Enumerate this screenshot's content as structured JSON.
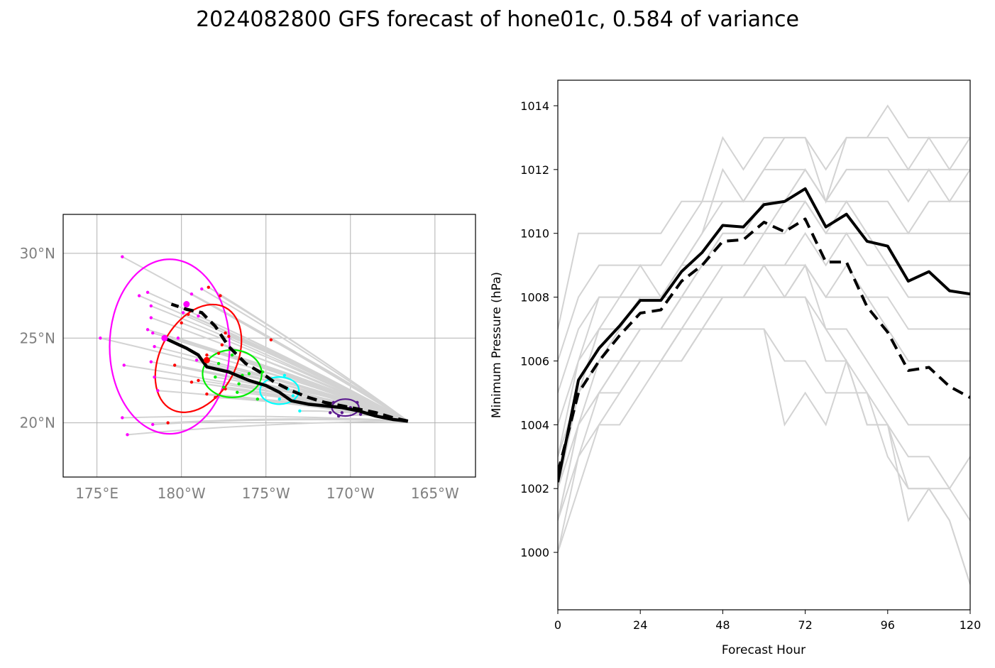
{
  "title": "2024082800 GFS forecast of hone01c, 0.584 of variance",
  "chart_data": [
    {
      "type": "map",
      "lon_ticks": [
        175,
        180,
        185,
        190,
        195
      ],
      "lon_tick_labels": [
        "175°E",
        "180°W",
        "175°W",
        "170°W",
        "165°W"
      ],
      "lat_ticks": [
        20,
        25,
        30
      ],
      "lat_tick_labels": [
        "20°N",
        "25°N",
        "30°N"
      ],
      "lon_range": [
        173,
        197.4
      ],
      "lat_range": [
        16.8,
        32.3
      ],
      "grid": true,
      "mean_track": {
        "solid": [
          [
            193.4,
            20.1
          ],
          [
            192.5,
            20.2
          ],
          [
            191.5,
            20.4
          ],
          [
            190.5,
            20.7
          ],
          [
            189.5,
            20.9
          ],
          [
            188.5,
            21.0
          ],
          [
            187.5,
            21.1
          ],
          [
            186.5,
            21.3
          ],
          [
            185.8,
            21.8
          ],
          [
            185.0,
            22.2
          ],
          [
            184.0,
            22.5
          ],
          [
            182.8,
            23.0
          ],
          [
            181.5,
            23.3
          ],
          [
            181.0,
            24.0
          ],
          [
            180.3,
            24.4
          ],
          [
            179.0,
            25.0
          ]
        ],
        "dashed": [
          [
            193.4,
            20.1
          ],
          [
            192.5,
            20.3
          ],
          [
            191.5,
            20.6
          ],
          [
            190.5,
            20.8
          ],
          [
            189.5,
            21.0
          ],
          [
            188.5,
            21.2
          ],
          [
            187.5,
            21.5
          ],
          [
            186.5,
            21.9
          ],
          [
            185.5,
            22.4
          ],
          [
            184.8,
            22.9
          ],
          [
            183.8,
            23.5
          ],
          [
            182.8,
            24.5
          ],
          [
            182.0,
            25.7
          ],
          [
            181.2,
            26.5
          ],
          [
            180.3,
            26.7
          ],
          [
            179.4,
            27.0
          ]
        ]
      },
      "error_ellipses": [
        {
          "color": "#ff00ff",
          "center": [
            179.3,
            24.5
          ],
          "width_deg": 7.1,
          "height_deg": 10.3,
          "angle_deg": 0
        },
        {
          "color": "#ff0000",
          "center": [
            181.0,
            23.8
          ],
          "width_deg": 4.5,
          "height_deg": 6.8,
          "angle_deg": 28
        },
        {
          "color": "#00ee00",
          "center": [
            183.0,
            22.9
          ],
          "width_deg": 3.5,
          "height_deg": 2.8,
          "angle_deg": 0
        },
        {
          "color": "#00ffff",
          "center": [
            185.8,
            21.9
          ],
          "width_deg": 2.3,
          "height_deg": 1.6,
          "angle_deg": 0
        },
        {
          "color": "#5b1a8f",
          "center": [
            189.7,
            20.9
          ],
          "width_deg": 1.6,
          "height_deg": 1.0,
          "angle_deg": 0
        }
      ],
      "member_points": [
        {
          "color": "#ff00ff",
          "points": [
            [
              176.5,
              29.8
            ],
            [
              177.5,
              27.5
            ],
            [
              178.0,
              27.7
            ],
            [
              178.2,
              26.9
            ],
            [
              178.2,
              26.2
            ],
            [
              178.0,
              25.5
            ],
            [
              178.3,
              25.3
            ],
            [
              178.4,
              24.5
            ],
            [
              178.2,
              23.6
            ],
            [
              178.4,
              22.7
            ],
            [
              178.6,
              21.9
            ],
            [
              175.2,
              25.0
            ],
            [
              176.6,
              23.4
            ],
            [
              176.5,
              20.3
            ],
            [
              176.8,
              19.3
            ],
            [
              178.3,
              19.9
            ],
            [
              180.1,
              26.5
            ],
            [
              179.8,
              25.0
            ],
            [
              180.6,
              27.6
            ],
            [
              181.2,
              27.9
            ],
            [
              181.0,
              26.3
            ],
            [
              180.9,
              23.7
            ]
          ]
        },
        {
          "color": "#ff0000",
          "points": [
            [
              181.6,
              28.0
            ],
            [
              182.3,
              27.5
            ],
            [
              182.6,
              25.3
            ],
            [
              182.4,
              24.6
            ],
            [
              182.2,
              24.1
            ],
            [
              181.9,
              23.2
            ],
            [
              181.0,
              22.5
            ],
            [
              180.6,
              22.4
            ],
            [
              181.5,
              21.7
            ],
            [
              182.0,
              21.5
            ],
            [
              182.6,
              22.0
            ],
            [
              180.4,
              26.4
            ],
            [
              180.0,
              25.9
            ],
            [
              179.6,
              23.4
            ],
            [
              179.2,
              20.0
            ],
            [
              185.3,
              24.9
            ],
            [
              182.8,
              25.1
            ],
            [
              181.5,
              24.0
            ]
          ]
        },
        {
          "color": "#00ee00",
          "points": [
            [
              183.0,
              24.0
            ],
            [
              183.6,
              22.8
            ],
            [
              183.4,
              22.3
            ],
            [
              182.5,
              22.1
            ],
            [
              182.0,
              22.7
            ],
            [
              184.0,
              22.9
            ],
            [
              184.5,
              21.4
            ],
            [
              183.3,
              21.8
            ],
            [
              184.8,
              23.0
            ],
            [
              182.2,
              23.5
            ]
          ]
        },
        {
          "color": "#00ffff",
          "points": [
            [
              185.2,
              22.6
            ],
            [
              186.1,
              22.8
            ],
            [
              186.3,
              22.0
            ],
            [
              185.8,
              21.4
            ],
            [
              187.0,
              20.7
            ],
            [
              185.4,
              22.0
            ],
            [
              186.6,
              21.6
            ]
          ]
        },
        {
          "color": "#5b1a8f",
          "points": [
            [
              189.0,
              21.2
            ],
            [
              189.5,
              20.6
            ],
            [
              190.0,
              20.9
            ],
            [
              190.4,
              21.2
            ],
            [
              189.3,
              20.4
            ],
            [
              188.8,
              20.6
            ],
            [
              190.6,
              20.5
            ]
          ]
        }
      ],
      "start_markers": [
        [
          180.3,
          27.0
        ],
        [
          179.0,
          25.0
        ],
        [
          181.5,
          23.7
        ]
      ]
    },
    {
      "type": "line",
      "xlabel": "Forecast Hour",
      "ylabel": "Minimum Pressure (hPa)",
      "xlim": [
        0,
        120
      ],
      "ylim": [
        998.2,
        1014.8
      ],
      "xticks": [
        0,
        24,
        48,
        72,
        96,
        120
      ],
      "yticks": [
        1000,
        1002,
        1004,
        1006,
        1008,
        1010,
        1012,
        1014
      ],
      "x": [
        0,
        6,
        12,
        18,
        24,
        30,
        36,
        42,
        48,
        54,
        60,
        66,
        72,
        78,
        84,
        90,
        96,
        102,
        108,
        114,
        120
      ],
      "series": [
        {
          "style": "mean-solid",
          "values": [
            1002.2,
            1005.4,
            1006.4,
            1007.1,
            1007.9,
            1007.9,
            1008.8,
            1009.4,
            1010.25,
            1010.2,
            1010.9,
            1011.0,
            1011.4,
            1010.2,
            1010.6,
            1009.75,
            1009.6,
            1008.5,
            1008.8,
            1008.2,
            1008.1
          ]
        },
        {
          "style": "mean-dashed",
          "values": [
            1002.5,
            1005.0,
            1006.0,
            1006.8,
            1007.5,
            1007.6,
            1008.5,
            1009.0,
            1009.75,
            1009.8,
            1010.35,
            1010.05,
            1010.45,
            1009.1,
            1009.1,
            1007.7,
            1006.9,
            1005.7,
            1005.8,
            1005.2,
            1004.85
          ]
        },
        {
          "style": "member",
          "values": [
            1007,
            1010,
            1010,
            1010,
            1010,
            1010,
            1011,
            1011,
            1011,
            1011,
            1011,
            1011,
            1012,
            1011,
            1012,
            1012,
            1012,
            1012,
            1012,
            1012,
            1012
          ]
        },
        {
          "style": "member",
          "values": [
            1006,
            1008,
            1009,
            1009,
            1009,
            1009,
            1010,
            1011,
            1013,
            1012,
            1013,
            1013,
            1013,
            1012,
            1013,
            1013,
            1014,
            1013,
            1013,
            1013,
            1013
          ]
        },
        {
          "style": "member",
          "values": [
            1005,
            1007,
            1008,
            1008,
            1009,
            1008,
            1009,
            1010,
            1012,
            1011,
            1012,
            1013,
            1013,
            1011,
            1013,
            1013,
            1013,
            1012,
            1013,
            1012,
            1013
          ]
        },
        {
          "style": "member",
          "values": [
            1004,
            1006,
            1008,
            1008,
            1008,
            1008,
            1009,
            1010,
            1011,
            1011,
            1012,
            1012,
            1012,
            1011,
            1012,
            1012,
            1012,
            1011,
            1012,
            1011,
            1012
          ]
        },
        {
          "style": "member",
          "values": [
            1003,
            1006,
            1007,
            1008,
            1008,
            1008,
            1009,
            1009,
            1010,
            1010,
            1011,
            1011,
            1012,
            1011,
            1011,
            1011,
            1011,
            1010,
            1011,
            1011,
            1011
          ]
        },
        {
          "style": "member",
          "values": [
            1003,
            1005,
            1007,
            1007,
            1008,
            1008,
            1008,
            1009,
            1010,
            1010,
            1010,
            1011,
            1011,
            1010,
            1011,
            1010,
            1010,
            1010,
            1010,
            1010,
            1010
          ]
        },
        {
          "style": "member",
          "values": [
            1002,
            1005,
            1007,
            1007,
            1007,
            1007,
            1008,
            1009,
            1009,
            1009,
            1010,
            1010,
            1011,
            1010,
            1010,
            1010,
            1009,
            1009,
            1009,
            1009,
            1009
          ]
        },
        {
          "style": "member",
          "values": [
            1002,
            1005,
            1006,
            1007,
            1007,
            1007,
            1008,
            1008,
            1009,
            1009,
            1009,
            1009,
            1010,
            1009,
            1010,
            1009,
            1009,
            1008,
            1008,
            1008,
            1008
          ]
        },
        {
          "style": "member",
          "values": [
            1002,
            1005,
            1006,
            1006,
            1007,
            1007,
            1008,
            1008,
            1008,
            1008,
            1009,
            1009,
            1009,
            1008,
            1009,
            1008,
            1008,
            1007,
            1007,
            1007,
            1007
          ]
        },
        {
          "style": "member",
          "values": [
            1002,
            1004,
            1006,
            1006,
            1007,
            1007,
            1007,
            1008,
            1008,
            1008,
            1009,
            1008,
            1009,
            1008,
            1008,
            1008,
            1007,
            1006,
            1006,
            1006,
            1006
          ]
        },
        {
          "style": "member",
          "values": [
            1001,
            1004,
            1005,
            1006,
            1006,
            1006,
            1007,
            1008,
            1008,
            1008,
            1008,
            1008,
            1009,
            1007,
            1007,
            1006,
            1005,
            1004,
            1004,
            1004,
            1004
          ]
        },
        {
          "style": "member",
          "values": [
            1001,
            1004,
            1005,
            1006,
            1006,
            1006,
            1007,
            1007,
            1008,
            1008,
            1008,
            1008,
            1008,
            1007,
            1006,
            1005,
            1004,
            1003,
            1003,
            1002,
            1003
          ]
        },
        {
          "style": "member",
          "values": [
            1001,
            1003,
            1005,
            1005,
            1006,
            1006,
            1007,
            1007,
            1008,
            1008,
            1008,
            1008,
            1008,
            1006,
            1006,
            1004,
            1004,
            1002,
            1002,
            1002,
            1001
          ]
        },
        {
          "style": "member",
          "values": [
            1000,
            1003,
            1004,
            1005,
            1006,
            1006,
            1006,
            1007,
            1007,
            1007,
            1007,
            1004,
            1005,
            1004,
            1006,
            1004,
            1004,
            1001,
            1002,
            1001,
            999
          ]
        },
        {
          "style": "member",
          "values": [
            1000,
            1002,
            1004,
            1004,
            1005,
            1006,
            1006,
            1007,
            1007,
            1007,
            1007,
            1006,
            1006,
            1005,
            1005,
            1005,
            1003,
            1002,
            1002,
            1001,
            999
          ]
        }
      ]
    }
  ]
}
